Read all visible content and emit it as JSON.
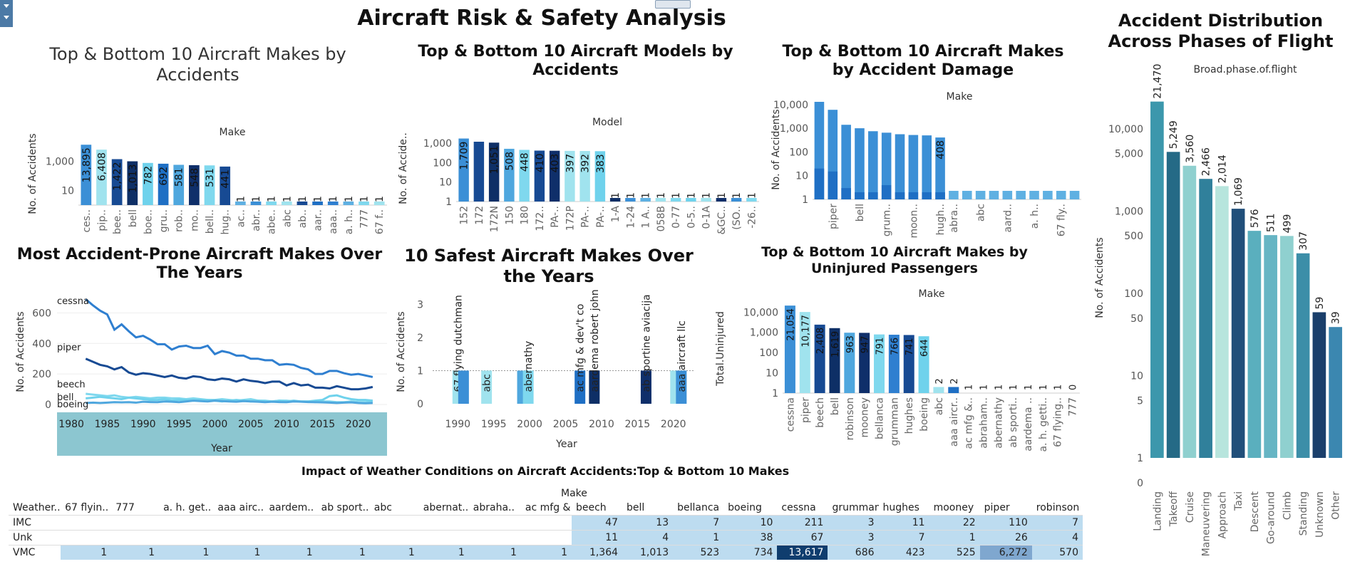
{
  "dashboard_title": "Aircraft Risk & Safety Analysis",
  "chart_data": [
    {
      "id": "c1",
      "type": "bar",
      "title": "Top &  Bottom 10 Aircraft Makes by Accidents",
      "xlabel": "Make",
      "ylabel": "No. of Accidents",
      "scale": "log",
      "yticks": [
        "1,000",
        "10"
      ],
      "categories": [
        "ces..",
        "pip..",
        "bee..",
        "bell",
        "boe..",
        "gru..",
        "rob..",
        "mo..",
        "bell..",
        "hug..",
        "ac..",
        "abr..",
        "abe..",
        "abc",
        "ab..",
        "aar..",
        "aaa..",
        "a. h..",
        "777",
        "67 f.."
      ],
      "values": [
        13895,
        6408,
        1422,
        1013,
        782,
        692,
        581,
        548,
        531,
        441,
        1,
        1,
        1,
        1,
        1,
        1,
        1,
        1,
        1,
        1
      ],
      "labels": [
        "13,895",
        "6,408",
        "1,422",
        "1,013",
        "782",
        "692",
        "581",
        "548",
        "531",
        "441",
        "1",
        "1",
        "1",
        "1",
        "1",
        "1",
        "1",
        "1",
        "1",
        "1"
      ],
      "colors": [
        "#3b8fd6",
        "#a0e3ee",
        "#174a93",
        "#0e2f66",
        "#6fd2ec",
        "#1f6fc4",
        "#4fa7de",
        "#0f2f6a",
        "#7fd8ee",
        "#174a93",
        "#5fb0e2",
        "#3b8fd6",
        "#7fd8ee",
        "#a0e3ee",
        "#174a93",
        "#1f6fc4",
        "#2f7fd0",
        "#5fb0e2",
        "#7fd8ee",
        "#a0e3ee"
      ]
    },
    {
      "id": "c2",
      "type": "bar",
      "title": "Top & Bottom  10 Aircraft Models by Accidents",
      "xlabel": "Model",
      "ylabel": "No. of Accide..",
      "scale": "log",
      "yticks": [
        "1,000",
        "100",
        "10",
        "1"
      ],
      "categories": [
        "152",
        "172",
        "172N",
        "150",
        "180",
        "172..",
        "PA-..",
        "172P",
        "PA-..",
        "PA-..",
        "1-A",
        "1-24",
        "1 A..",
        "058B",
        "0-77",
        "0-5..",
        "0-1A",
        "&GC..",
        "(SO..",
        "-26.."
      ],
      "values": [
        1709,
        1172,
        1051,
        508,
        448,
        410,
        403,
        397,
        392,
        383,
        1,
        1,
        1,
        1,
        1,
        1,
        1,
        1,
        1,
        1
      ],
      "labels": [
        "1,709",
        "",
        "1,051",
        "508",
        "448",
        "410",
        "403",
        "397",
        "392",
        "383",
        "1",
        "1",
        "1",
        "1",
        "1",
        "1",
        "1",
        "1",
        "1",
        "1"
      ],
      "colors": [
        "#3b8fd6",
        "#174a93",
        "#0e2f66",
        "#4fa7de",
        "#7fd8ee",
        "#174a93",
        "#0f2f6a",
        "#a0e3ee",
        "#a0e3ee",
        "#6fd2ec",
        "#0e2f66",
        "#3b8fd6",
        "#5fb0e2",
        "#a0e3ee",
        "#7fd8ee",
        "#6fd2ec",
        "#a0e3ee",
        "#0f2f6a",
        "#3b8fd6",
        "#7fd8ee"
      ]
    },
    {
      "id": "c3",
      "type": "bar",
      "title": "Top & Bottom 10 Aircraft Makes by Accident Damage",
      "xlabel": "Make",
      "ylabel": "No. of Accidents",
      "scale": "log",
      "yticks": [
        "10,000",
        "1,000",
        "100",
        "10",
        "1"
      ],
      "categories": [
        "",
        "piper",
        "",
        "bell",
        "",
        "grum..",
        "",
        "moon..",
        "",
        "hugh..",
        "abra..",
        "",
        "abc",
        "",
        "aard..",
        "",
        "a. h..",
        "",
        "67 fly..",
        ""
      ],
      "values": [
        13000,
        6000,
        1400,
        1000,
        750,
        650,
        560,
        520,
        500,
        408,
        1,
        1,
        1,
        1,
        1,
        1,
        1,
        1,
        1,
        1
      ],
      "inner": [
        20,
        15,
        3,
        2,
        2,
        4,
        2,
        2,
        2,
        2
      ],
      "labels": [
        "",
        "",
        "",
        "",
        "",
        "",
        "",
        "",
        "",
        "408",
        "",
        "",
        "",
        "",
        "",
        "",
        "",
        "",
        "",
        ""
      ],
      "colors": [
        "#3b8fd6",
        "#3b8fd6",
        "#3b8fd6",
        "#3b8fd6",
        "#3b8fd6",
        "#3b8fd6",
        "#3b8fd6",
        "#3b8fd6",
        "#3b8fd6",
        "#3b8fd6",
        "#5fb0e2",
        "#5fb0e2",
        "#5fb0e2",
        "#5fb0e2",
        "#5fb0e2",
        "#5fb0e2",
        "#5fb0e2",
        "#5fb0e2",
        "#5fb0e2",
        "#5fb0e2"
      ]
    },
    {
      "id": "c4",
      "type": "line",
      "title": "Most Accident-Prone Aircraft Makes Over  The Years",
      "xlabel": "Year",
      "ylabel": "No. of Accidents",
      "x": [
        1982,
        1983,
        1984,
        1985,
        1986,
        1987,
        1988,
        1989,
        1990,
        1991,
        1992,
        1993,
        1994,
        1995,
        1996,
        1997,
        1998,
        1999,
        2000,
        2001,
        2002,
        2003,
        2004,
        2005,
        2006,
        2007,
        2008,
        2009,
        2010,
        2011,
        2012,
        2013,
        2014,
        2015,
        2016,
        2017,
        2018,
        2019,
        2020,
        2021,
        2022
      ],
      "xticks": [
        "1980",
        "1985",
        "1990",
        "1995",
        "2000",
        "2005",
        "2010",
        "2015",
        "2020"
      ],
      "yticks": [
        "600",
        "400",
        "200",
        "0"
      ],
      "ylim": [
        0,
        700
      ],
      "series": [
        {
          "name": "cessna",
          "color": "#2f7fd0",
          "values": [
            690,
            650,
            615,
            590,
            490,
            525,
            480,
            440,
            450,
            425,
            395,
            395,
            360,
            380,
            385,
            370,
            370,
            385,
            330,
            350,
            340,
            320,
            320,
            300,
            300,
            290,
            290,
            260,
            265,
            260,
            240,
            230,
            200,
            200,
            220,
            220,
            205,
            195,
            200,
            190,
            180
          ]
        },
        {
          "name": "piper",
          "color": "#174a93",
          "values": [
            300,
            280,
            260,
            250,
            230,
            245,
            210,
            195,
            205,
            200,
            190,
            180,
            190,
            175,
            170,
            185,
            180,
            165,
            160,
            170,
            165,
            150,
            165,
            155,
            150,
            140,
            150,
            150,
            125,
            140,
            125,
            130,
            110,
            110,
            105,
            120,
            110,
            100,
            100,
            105,
            115
          ]
        },
        {
          "name": "beech",
          "color": "#7fd8ee",
          "values": [
            70,
            65,
            60,
            55,
            60,
            50,
            45,
            50,
            45,
            40,
            45,
            45,
            40,
            40,
            35,
            40,
            35,
            30,
            30,
            35,
            30,
            25,
            30,
            35,
            25,
            25,
            20,
            25,
            25,
            20,
            20,
            20,
            15,
            20,
            20,
            15,
            15,
            20,
            15,
            15,
            20
          ]
        },
        {
          "name": "bell",
          "color": "#6fd2ec",
          "values": [
            40,
            45,
            50,
            45,
            40,
            35,
            45,
            40,
            35,
            30,
            30,
            35,
            25,
            30,
            30,
            25,
            30,
            30,
            25,
            20,
            25,
            30,
            25,
            20,
            25,
            20,
            20,
            25,
            20,
            25,
            20,
            20,
            25,
            30,
            55,
            60,
            45,
            35,
            30,
            30,
            25
          ]
        },
        {
          "name": "boeing",
          "color": "#4fa7de",
          "values": [
            10,
            12,
            10,
            12,
            15,
            14,
            15,
            12,
            18,
            16,
            15,
            20,
            18,
            15,
            20,
            25,
            22,
            20,
            25,
            22,
            20,
            18,
            22,
            20,
            18,
            15,
            18,
            16,
            15,
            20,
            18,
            16,
            15,
            14,
            12,
            10,
            12,
            14,
            10,
            8,
            10
          ]
        }
      ]
    },
    {
      "id": "c5",
      "type": "bar",
      "title": "10 Safest Aircraft Makes Over the Years",
      "xlabel": "Year",
      "ylabel": "No. of Accidents",
      "yticks": [
        "3",
        "2",
        "1",
        "0"
      ],
      "ylim": [
        0,
        3.2
      ],
      "xticks": [
        "1990",
        "1995",
        "2000",
        "2005",
        "2010",
        "2015",
        "2020"
      ],
      "bars": [
        {
          "year": 1990,
          "value": 1,
          "color": "#a0e3ee",
          "label": "67 flying dutchman"
        },
        {
          "year": 1990.8,
          "value": 1,
          "color": "#3b8fd6",
          "label": ""
        },
        {
          "year": 1994,
          "value": 1,
          "color": "#a0e3ee",
          "label": "abc"
        },
        {
          "year": 1999,
          "value": 1,
          "color": "#4fa7de",
          "label": ""
        },
        {
          "year": 1999.8,
          "value": 1,
          "color": "#7fd8ee",
          "label": "abernathy"
        },
        {
          "year": 2007,
          "value": 1,
          "color": "#1f6fc4",
          "label": "ac mfg & dev't co"
        },
        {
          "year": 2009,
          "value": 1,
          "color": "#0e2f66",
          "label": "aardema robert john"
        },
        {
          "year": 2016.2,
          "value": 1,
          "color": "#0f2f6a",
          "label": "ab sportine aviacija"
        },
        {
          "year": 2020.3,
          "value": 1,
          "color": "#a0e3ee",
          "label": ""
        },
        {
          "year": 2021.1,
          "value": 1,
          "color": "#3b8fd6",
          "label": "aaa aircraft llc"
        }
      ]
    },
    {
      "id": "c6",
      "type": "bar",
      "title": "Top & Bottom 10 Aircraft Makes by Uninjured Passengers",
      "xlabel": "Make",
      "ylabel": "Total.Uninjured",
      "scale": "log",
      "yticks": [
        "10,000",
        "1,000",
        "100",
        "10",
        "1"
      ],
      "categories": [
        "cessna",
        "piper",
        "beech",
        "bell",
        "robinson",
        "mooney",
        "bellanca",
        "grumman",
        "hughes",
        "boeing",
        "abc",
        "aaa aircr..",
        "ac mfg &..",
        "abraham..",
        "abernathy",
        "ab sporti..",
        "aardema ..",
        "a. h. getti..",
        "67 flying..",
        "777"
      ],
      "values": [
        21054,
        10177,
        2408,
        1619,
        963,
        947,
        791,
        766,
        741,
        644,
        2,
        2,
        1,
        1,
        1,
        1,
        1,
        1,
        1,
        0
      ],
      "labels": [
        "21,054",
        "10,177",
        "2,408",
        "1,619",
        "963",
        "947",
        "791",
        "766",
        "741",
        "644",
        "2",
        "2",
        "1",
        "1",
        "1",
        "1",
        "1",
        "1",
        "1",
        "0"
      ],
      "colors": [
        "#3b8fd6",
        "#a0e3ee",
        "#174a93",
        "#0e2f66",
        "#4fa7de",
        "#0f2f6a",
        "#7fd8ee",
        "#2f7fd0",
        "#174a93",
        "#6fd2ec",
        "#a0e3ee",
        "#1f6fc4",
        "#3b8fd6",
        "#5fb0e2",
        "#7fd8ee",
        "#0f2f6a",
        "#174a93",
        "#4fa7de",
        "#a0e3ee",
        "#ffffff"
      ]
    },
    {
      "id": "c7",
      "type": "bar",
      "title": "Accident Distribution Across Phases of Flight",
      "subtitle": "Broad.phase.of.flight",
      "ylabel": "No. of Accidents",
      "scale": "log",
      "yticks": [
        "10,000",
        "5,000",
        "1,000",
        "500",
        "100",
        "50",
        "10",
        "5",
        "1",
        "0"
      ],
      "categories": [
        "Landing",
        "Takeoff",
        "Cruise",
        "Maneuvering",
        "Approach",
        "Taxi",
        "Descent",
        "Go-around",
        "Climb",
        "Standing",
        "Unknown",
        "Other"
      ],
      "values": [
        21470,
        5249,
        3560,
        2466,
        2014,
        1069,
        576,
        511,
        499,
        307,
        59,
        39
      ],
      "labels": [
        "21,470",
        "5,249",
        "3,560",
        "2,466",
        "2,014",
        "1,069",
        "576",
        "511",
        "499",
        "307",
        "59",
        "39"
      ],
      "colors": [
        "#3c97ac",
        "#256a86",
        "#8fd0cf",
        "#30809b",
        "#b7e5dd",
        "#214f7a",
        "#5aafbe",
        "#66b5c4",
        "#8fd0cf",
        "#3c8ea8",
        "#1b3f6b",
        "#3b87b0"
      ]
    },
    {
      "id": "c8",
      "type": "table",
      "title": "Impact of Weather Conditions on Aircraft Accidents:Top & Bottom 10 Makes",
      "column_group": "Make",
      "row_header": "Weather..",
      "columns": [
        "67 flyin..",
        "777",
        "a. h. get..",
        "aaa airc..",
        "aardem..",
        "ab sport..",
        "abc",
        "abernat..",
        "abraha..",
        "ac mfg &..",
        "beech",
        "bell",
        "bellanca",
        "boeing",
        "cessna",
        "grumman",
        "hughes",
        "mooney",
        "piper",
        "robinson"
      ],
      "rows": [
        {
          "name": "IMC",
          "values": [
            "",
            "",
            "",
            "",
            "",
            "",
            "",
            "",
            "",
            "",
            "47",
            "13",
            "7",
            "10",
            "211",
            "3",
            "11",
            "22",
            "110",
            "7"
          ]
        },
        {
          "name": "Unk",
          "values": [
            "",
            "",
            "",
            "",
            "",
            "",
            "",
            "",
            "",
            "",
            "11",
            "4",
            "1",
            "38",
            "67",
            "3",
            "7",
            "1",
            "26",
            "4"
          ]
        },
        {
          "name": "VMC",
          "values": [
            "1",
            "1",
            "1",
            "1",
            "1",
            "1",
            "1",
            "1",
            "1",
            "1",
            "1,364",
            "1,013",
            "523",
            "734",
            "13,617",
            "686",
            "423",
            "525",
            "6,272",
            "570"
          ]
        }
      ]
    }
  ]
}
